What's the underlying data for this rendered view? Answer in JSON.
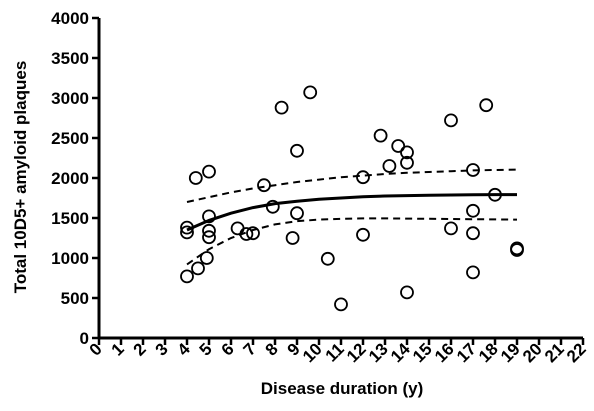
{
  "chart_data": {
    "type": "scatter",
    "title": "",
    "xlabel": "Disease duration (y)",
    "ylabel": "Total 10D5+ amyloid plaques",
    "xlim": [
      0,
      22
    ],
    "ylim": [
      0,
      4000
    ],
    "x_ticks": [
      0,
      1,
      2,
      3,
      4,
      5,
      6,
      7,
      8,
      9,
      10,
      11,
      12,
      13,
      14,
      15,
      16,
      17,
      18,
      19,
      20,
      21,
      22
    ],
    "x_tick_labels": [
      "0",
      "1",
      "2",
      "3",
      "4",
      "5",
      "6",
      "7",
      "8",
      "9",
      "10",
      "11",
      "12",
      "13",
      "14",
      "15",
      "16",
      "17",
      "18",
      "19",
      "20",
      "21",
      "22"
    ],
    "y_ticks": [
      0,
      500,
      1000,
      1500,
      2000,
      2500,
      3000,
      3500,
      4000
    ],
    "y_tick_labels": [
      "0",
      "500",
      "1000",
      "1500",
      "2000",
      "2500",
      "3000",
      "3500",
      "4000"
    ],
    "grid": false,
    "legend": "none",
    "points": [
      {
        "x": 4.0,
        "y": 770
      },
      {
        "x": 4.0,
        "y": 1320
      },
      {
        "x": 4.0,
        "y": 1380
      },
      {
        "x": 4.4,
        "y": 2000
      },
      {
        "x": 4.5,
        "y": 870
      },
      {
        "x": 4.9,
        "y": 1000
      },
      {
        "x": 5.0,
        "y": 1260
      },
      {
        "x": 5.0,
        "y": 1340
      },
      {
        "x": 5.0,
        "y": 1520
      },
      {
        "x": 5.0,
        "y": 2080
      },
      {
        "x": 6.3,
        "y": 1370
      },
      {
        "x": 6.7,
        "y": 1300
      },
      {
        "x": 7.0,
        "y": 1310
      },
      {
        "x": 7.5,
        "y": 1910
      },
      {
        "x": 7.9,
        "y": 1640
      },
      {
        "x": 8.3,
        "y": 2880
      },
      {
        "x": 8.8,
        "y": 1250
      },
      {
        "x": 9.0,
        "y": 1560
      },
      {
        "x": 9.0,
        "y": 2340
      },
      {
        "x": 9.6,
        "y": 3070
      },
      {
        "x": 10.4,
        "y": 990
      },
      {
        "x": 11.0,
        "y": 420
      },
      {
        "x": 12.0,
        "y": 1290
      },
      {
        "x": 12.0,
        "y": 2010
      },
      {
        "x": 12.8,
        "y": 2530
      },
      {
        "x": 13.2,
        "y": 2150
      },
      {
        "x": 13.6,
        "y": 2400
      },
      {
        "x": 14.0,
        "y": 570
      },
      {
        "x": 14.0,
        "y": 2190
      },
      {
        "x": 14.0,
        "y": 2320
      },
      {
        "x": 16.0,
        "y": 1370
      },
      {
        "x": 16.0,
        "y": 2720
      },
      {
        "x": 17.0,
        "y": 820
      },
      {
        "x": 17.0,
        "y": 1310
      },
      {
        "x": 17.0,
        "y": 1590
      },
      {
        "x": 17.0,
        "y": 2100
      },
      {
        "x": 17.6,
        "y": 2910
      },
      {
        "x": 18.0,
        "y": 1790
      },
      {
        "x": 19.0,
        "y": 1100
      },
      {
        "x": 19.0,
        "y": 1120
      }
    ],
    "fit_line": {
      "x": [
        4,
        5,
        6,
        7,
        8,
        9,
        10,
        11,
        12,
        13,
        14,
        15,
        16,
        17,
        18,
        19
      ],
      "y": [
        1350,
        1470,
        1560,
        1630,
        1680,
        1710,
        1735,
        1750,
        1765,
        1775,
        1780,
        1785,
        1788,
        1790,
        1792,
        1793
      ]
    },
    "ci_upper": {
      "x": [
        4,
        5,
        6,
        7,
        8,
        9,
        10,
        11,
        12,
        13,
        14,
        15,
        16,
        17,
        18,
        19
      ],
      "y": [
        1700,
        1760,
        1820,
        1870,
        1910,
        1950,
        1980,
        2010,
        2030,
        2050,
        2065,
        2075,
        2085,
        2095,
        2100,
        2105
      ]
    },
    "ci_lower": {
      "x": [
        4,
        5,
        6,
        7,
        8,
        9,
        10,
        11,
        12,
        13,
        14,
        15,
        16,
        17,
        18,
        19
      ],
      "y": [
        920,
        1110,
        1250,
        1350,
        1420,
        1460,
        1480,
        1490,
        1495,
        1495,
        1493,
        1490,
        1488,
        1485,
        1482,
        1480
      ]
    }
  }
}
